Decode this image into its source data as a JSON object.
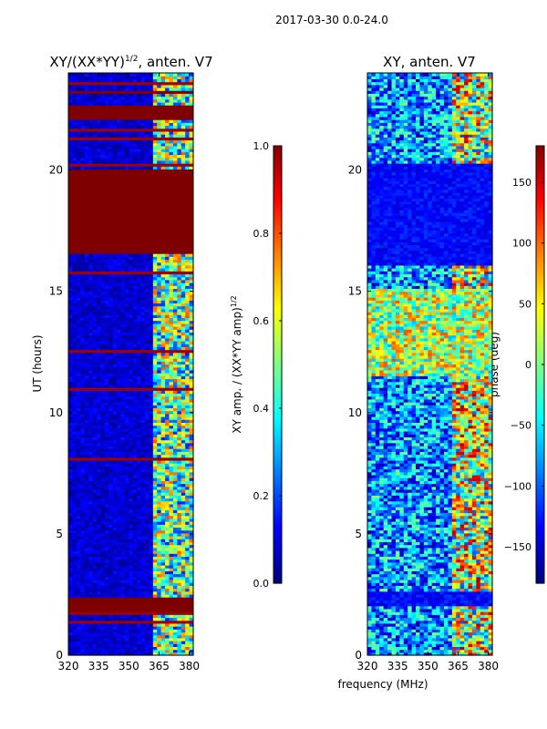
{
  "suptitle": "2017-03-30 0.0-24.0",
  "colors": {
    "jet": [
      "#00007f",
      "#0000ff",
      "#007fff",
      "#00ffff",
      "#7fff7f",
      "#ffff00",
      "#ff7f00",
      "#ff0000",
      "#7f0000"
    ],
    "axis": "#000000",
    "background": "#ffffff"
  },
  "chart_data": [
    {
      "type": "heatmap",
      "title_main": "XY/(XX*YY)",
      "title_sup": "1/2",
      "title_suffix": ", anten. V7",
      "xlabel": "",
      "ylabel": "UT (hours)",
      "xlim": [
        320,
        382
      ],
      "ylim": [
        0,
        24
      ],
      "xticks": [
        320,
        335,
        350,
        365,
        380
      ],
      "yticks": [
        0,
        5,
        10,
        15,
        20
      ],
      "flagged_blocks_hours": [
        [
          16.5,
          18.4
        ],
        [
          17.8,
          19.6
        ],
        [
          19.6,
          20.0
        ],
        [
          22.0,
          22.6
        ],
        [
          23.1,
          23.2
        ],
        [
          1.8,
          2.3
        ]
      ],
      "active_band_mhz": [
        362,
        380
      ],
      "colorbar": {
        "label_main": "XY amp. / (XX*YY amp)",
        "label_sup": "1/2",
        "range": [
          0.0,
          1.0
        ],
        "ticks": [
          0.0,
          0.2,
          0.4,
          0.6,
          0.8,
          1.0
        ],
        "tick_labels": [
          "0.0",
          "0.2",
          "0.4",
          "0.6",
          "0.8",
          "1.0"
        ]
      }
    },
    {
      "type": "heatmap",
      "title_main": "XY, anten. V7",
      "xlabel": "frequency (MHz)",
      "ylabel": "",
      "xlim": [
        320,
        382
      ],
      "ylim": [
        0,
        24
      ],
      "xticks": [
        320,
        335,
        350,
        365,
        380
      ],
      "yticks": [
        0,
        5,
        10,
        15,
        20
      ],
      "colorbar": {
        "label_main": "phase (deg)",
        "range": [
          -180,
          180
        ],
        "ticks": [
          -150,
          -100,
          -50,
          0,
          50,
          100,
          150
        ],
        "tick_labels": [
          "−150",
          "−100",
          "−50",
          "0",
          "50",
          "100",
          "150"
        ]
      }
    }
  ]
}
